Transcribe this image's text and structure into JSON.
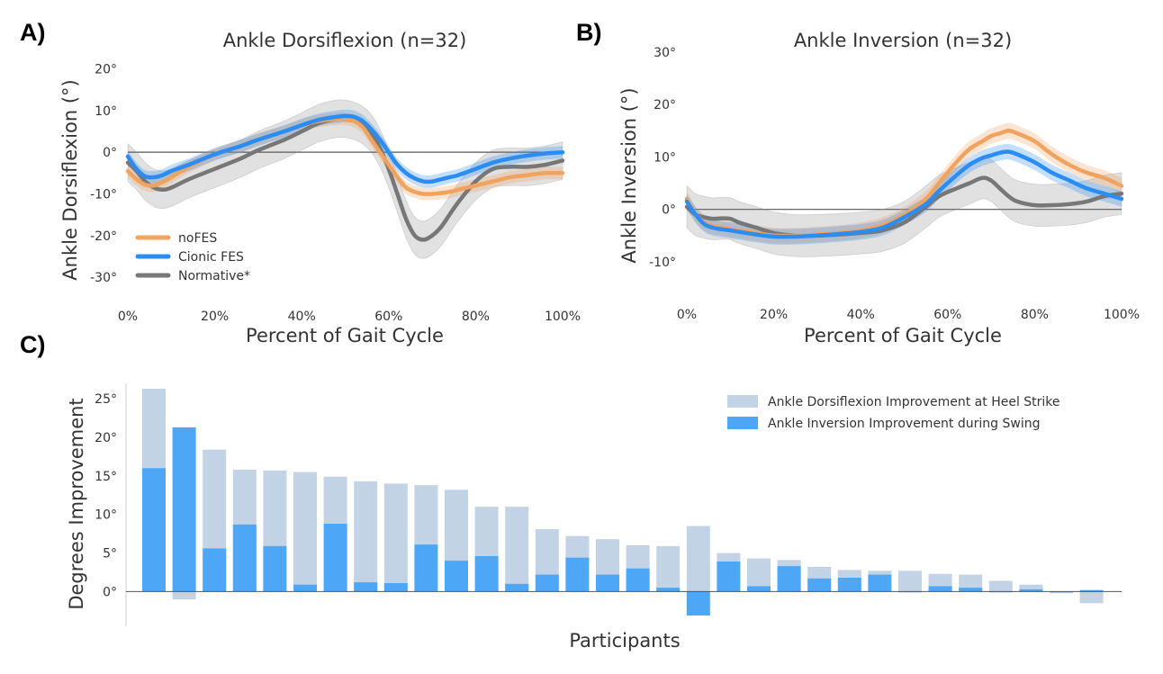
{
  "panel_labels": {
    "a": "A)",
    "b": "B)",
    "c": "C)"
  },
  "colors": {
    "noFES": "#f0a35e",
    "cionic": "#2b8cf4",
    "normative": "#777777",
    "dorsi_bar": "#c3d3e6",
    "inv_bar": "#4ea6f7"
  },
  "chart_data": [
    {
      "type": "line",
      "title": "Ankle Dorsiflexion (n=32)",
      "xlabel": "Percent of Gait Cycle",
      "ylabel": "Ankle Dorsiflexion (°)",
      "xlim": [
        0,
        100
      ],
      "ylim": [
        -33,
        24
      ],
      "xticks": [
        "0%",
        "20%",
        "40%",
        "60%",
        "80%",
        "100%"
      ],
      "yticks": [
        "-30°",
        "-20°",
        "-10°",
        "0°",
        "10°",
        "20°"
      ],
      "legend_position": "lower-left",
      "grid": false,
      "x": [
        0,
        2,
        4,
        6,
        8,
        10,
        14,
        20,
        26,
        30,
        36,
        40,
        44,
        48,
        50,
        52,
        54,
        56,
        58,
        60,
        62,
        64,
        66,
        68,
        70,
        72,
        74,
        76,
        80,
        84,
        88,
        92,
        96,
        100
      ],
      "series": [
        {
          "name": "noFES",
          "values": [
            -4.5,
            -6.5,
            -7.8,
            -8.0,
            -7.2,
            -6.0,
            -3.5,
            -0.5,
            1.5,
            3.0,
            5.0,
            6.5,
            7.5,
            8.0,
            8.0,
            7.5,
            6.0,
            3.0,
            0.0,
            -3.0,
            -6.0,
            -8.5,
            -9.5,
            -10.0,
            -10.0,
            -9.8,
            -9.5,
            -9.0,
            -8.0,
            -7.0,
            -6.0,
            -5.5,
            -5.0,
            -5.0
          ],
          "band": 1.5
        },
        {
          "name": "Cionic FES",
          "values": [
            -1.0,
            -4.0,
            -5.8,
            -6.0,
            -5.5,
            -4.5,
            -3.0,
            -0.5,
            1.5,
            3.0,
            5.0,
            6.5,
            7.8,
            8.5,
            8.7,
            8.5,
            7.5,
            5.5,
            3.0,
            0.0,
            -3.0,
            -5.0,
            -6.3,
            -7.0,
            -7.0,
            -6.5,
            -6.0,
            -5.5,
            -4.0,
            -2.5,
            -1.5,
            -0.8,
            -0.3,
            0.0
          ],
          "band": 1.5
        },
        {
          "name": "Normative*",
          "values": [
            -2.5,
            -4.5,
            -7.0,
            -8.5,
            -9.0,
            -8.5,
            -6.5,
            -4.0,
            -1.5,
            0.5,
            3.0,
            5.0,
            7.0,
            8.0,
            8.0,
            7.5,
            6.5,
            4.5,
            1.0,
            -4.0,
            -10.0,
            -16.0,
            -20.0,
            -21.0,
            -20.0,
            -18.0,
            -15.0,
            -12.0,
            -7.0,
            -4.0,
            -3.5,
            -3.5,
            -3.0,
            -2.0
          ],
          "band": 4.5
        }
      ]
    },
    {
      "type": "line",
      "title": "Ankle Inversion (n=32)",
      "xlabel": "Percent of Gait Cycle",
      "ylabel": "Ankle Inversion (°)",
      "xlim": [
        0,
        100
      ],
      "ylim": [
        -15,
        30
      ],
      "xticks": [
        "0%",
        "20%",
        "40%",
        "60%",
        "80%",
        "100%"
      ],
      "yticks": [
        "-10°",
        "0°",
        "10°",
        "20°",
        "30°"
      ],
      "grid": false,
      "x": [
        0,
        2,
        4,
        6,
        8,
        10,
        12,
        16,
        20,
        25,
        30,
        35,
        40,
        45,
        50,
        55,
        58,
        62,
        65,
        68,
        70,
        72,
        74,
        76,
        80,
        84,
        88,
        92,
        96,
        100
      ],
      "series": [
        {
          "name": "noFES",
          "values": [
            2.0,
            -1.0,
            -2.5,
            -3.2,
            -3.5,
            -3.8,
            -4.0,
            -4.5,
            -5.0,
            -5.0,
            -4.8,
            -4.5,
            -4.0,
            -3.0,
            -1.0,
            2.0,
            5.0,
            9.0,
            11.5,
            13.0,
            14.0,
            14.5,
            15.0,
            14.5,
            13.0,
            10.5,
            8.5,
            7.0,
            6.0,
            4.5
          ],
          "band": 1.5
        },
        {
          "name": "Cionic FES",
          "values": [
            1.5,
            -1.0,
            -2.8,
            -3.5,
            -3.8,
            -4.0,
            -4.3,
            -4.8,
            -5.2,
            -5.2,
            -5.0,
            -4.7,
            -4.3,
            -3.5,
            -1.5,
            1.0,
            3.5,
            6.5,
            8.5,
            9.8,
            10.3,
            10.8,
            11.0,
            10.5,
            9.0,
            7.0,
            5.5,
            4.0,
            3.0,
            2.0
          ],
          "band": 1.5
        },
        {
          "name": "Normative*",
          "values": [
            0.5,
            -1.0,
            -1.5,
            -1.8,
            -1.7,
            -1.8,
            -2.5,
            -3.5,
            -4.5,
            -5.0,
            -5.0,
            -4.8,
            -4.5,
            -4.0,
            -2.5,
            0.5,
            2.5,
            4.0,
            5.0,
            6.0,
            5.5,
            4.0,
            2.5,
            1.5,
            0.8,
            0.8,
            1.0,
            1.5,
            2.5,
            3.0
          ],
          "band": 4.0
        }
      ]
    },
    {
      "type": "bar",
      "xlabel": "Participants",
      "ylabel": "Degrees Improvement",
      "ylim": [
        -4.5,
        27
      ],
      "yticks": [
        "0°",
        "5°",
        "10°",
        "15°",
        "20°",
        "25°"
      ],
      "legend_position": "top-right",
      "grid": false,
      "series": [
        {
          "name": "Ankle Dorsiflexion Improvement at Heel Strike",
          "values": [
            26.3,
            -1.0,
            18.4,
            15.8,
            15.7,
            15.5,
            14.9,
            14.3,
            14.0,
            13.8,
            13.2,
            11.0,
            11.0,
            8.1,
            7.2,
            6.8,
            6.0,
            5.9,
            8.5,
            5.0,
            4.3,
            4.1,
            3.2,
            2.8,
            2.7,
            2.7,
            2.3,
            2.2,
            1.4,
            0.9,
            -0.2,
            -1.5
          ]
        },
        {
          "name": "Ankle Inversion Improvement during Swing",
          "values": [
            16.0,
            21.3,
            5.6,
            8.7,
            5.9,
            0.9,
            8.8,
            1.2,
            1.1,
            6.1,
            4.0,
            4.6,
            1.0,
            2.2,
            4.4,
            2.2,
            3.0,
            0.5,
            -3.1,
            3.9,
            0.7,
            3.3,
            1.7,
            1.8,
            2.2,
            0.0,
            0.7,
            0.5,
            0.0,
            0.3,
            0.0,
            0.2
          ]
        }
      ]
    }
  ]
}
